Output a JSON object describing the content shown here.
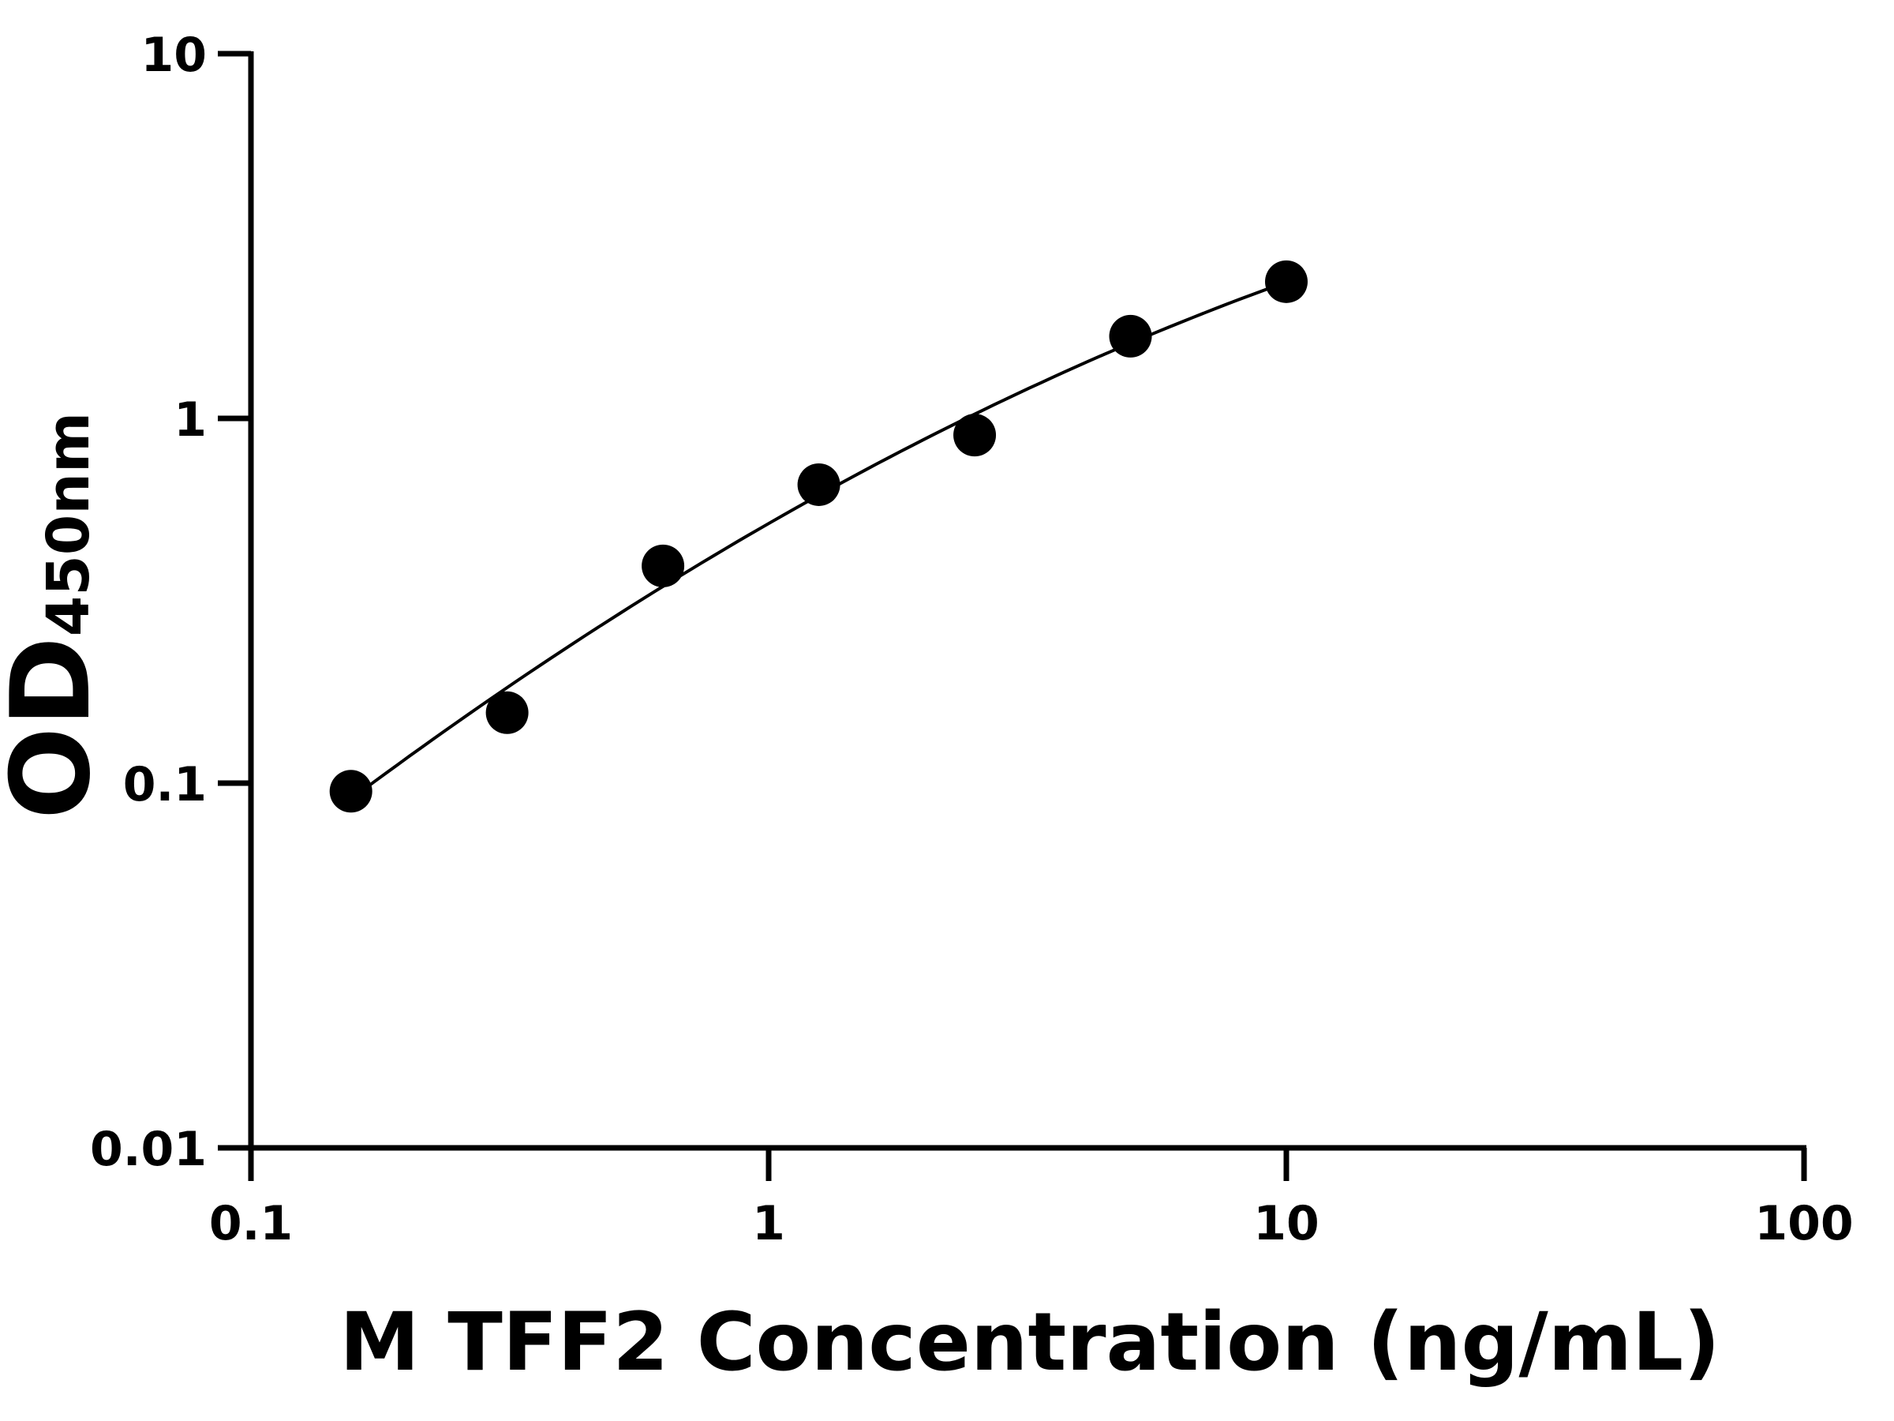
{
  "chart_data": {
    "type": "scatter",
    "title": "",
    "xlabel": "M TFF2 Concentration (ng/mL)",
    "ylabel_main": "OD",
    "ylabel_sub": "450nm",
    "xscale": "log",
    "yscale": "log",
    "xlim": [
      0.1,
      100
    ],
    "ylim": [
      0.01,
      10
    ],
    "xticks": [
      "0.1",
      "1",
      "10",
      "100"
    ],
    "yticks": [
      "0.01",
      "0.1",
      "1",
      "10"
    ],
    "grid": false,
    "fit_curve": true,
    "x": [
      0.156,
      0.3125,
      0.625,
      1.25,
      2.5,
      5,
      10
    ],
    "y": [
      0.095,
      0.156,
      0.394,
      0.658,
      0.9,
      1.68,
      2.37
    ],
    "colors": {
      "points": "#000000",
      "line": "#000000"
    }
  }
}
